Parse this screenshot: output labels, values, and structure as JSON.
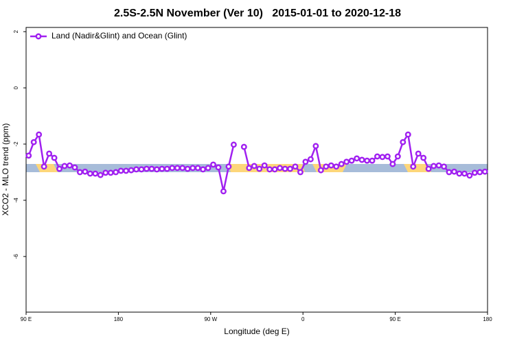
{
  "chart_data": {
    "type": "line",
    "title": "2.5S-2.5N November (Ver 10)   2015-01-01 to 2020-12-18",
    "xlabel": "Longitude (deg E)",
    "ylabel": "XCO2 - MLO trend (ppm)",
    "x": [
      92.5,
      97.5,
      102.5,
      107.5,
      112.5,
      117.5,
      122.5,
      127.5,
      132.5,
      137.5,
      142.5,
      147.5,
      152.5,
      157.5,
      162.5,
      167.5,
      172.5,
      177.5,
      182.5,
      187.5,
      192.5,
      197.5,
      202.5,
      207.5,
      212.5,
      217.5,
      222.5,
      227.5,
      232.5,
      237.5,
      242.5,
      247.5,
      252.5,
      257.5,
      262.5,
      267.5,
      272.5,
      277.5,
      282.5,
      287.5,
      292.5,
      297.5,
      302.5,
      307.5,
      312.5,
      317.5,
      322.5,
      327.5,
      332.5,
      337.5,
      342.5,
      347.5,
      352.5,
      357.5,
      362.5,
      367.5,
      372.5,
      377.5,
      382.5,
      387.5,
      392.5,
      397.5,
      402.5,
      407.5,
      412.5,
      417.5,
      422.5,
      427.5,
      432.5,
      437.5,
      442.5,
      447.5,
      452.5,
      457.5,
      462.5,
      467.5,
      472.5,
      477.5,
      482.5,
      487.5,
      492.5,
      497.5,
      502.5,
      507.5,
      512.5,
      517.5,
      522.5,
      527.5,
      532.5,
      537.5
    ],
    "series": [
      {
        "name": "Land (Nadir&Glint) and Ocean (Glint)",
        "color": "#a020f0",
        "values": [
          -2.41,
          -1.93,
          -1.66,
          -2.8,
          -2.34,
          -2.49,
          -2.88,
          -2.78,
          -2.76,
          -2.83,
          -3.0,
          -2.98,
          -3.05,
          -3.05,
          -3.1,
          -3.02,
          -3.02,
          -3.0,
          -2.95,
          -2.95,
          -2.93,
          -2.9,
          -2.9,
          -2.88,
          -2.88,
          -2.9,
          -2.88,
          -2.88,
          -2.85,
          -2.85,
          -2.85,
          -2.88,
          -2.85,
          -2.85,
          -2.9,
          -2.85,
          -2.73,
          -2.83,
          -3.68,
          -2.8,
          -2.02,
          null,
          -2.1,
          -2.85,
          -2.78,
          -2.88,
          -2.76,
          -2.9,
          -2.9,
          -2.85,
          -2.88,
          -2.88,
          -2.8,
          -3.0,
          -2.63,
          -2.54,
          -2.07,
          -2.93,
          -2.8,
          -2.76,
          -2.8,
          -2.71,
          -2.63,
          -2.59,
          -2.51,
          -2.56,
          -2.59,
          -2.59,
          -2.44,
          -2.46,
          -2.44,
          -2.71,
          -2.44,
          -1.93,
          -1.66,
          -2.8,
          -2.34,
          -2.49,
          -2.88,
          -2.78,
          -2.76,
          -2.8,
          -3.0,
          -2.98,
          -3.05,
          -3.05,
          -3.12,
          -3.02,
          -3.0,
          -2.98
        ]
      }
    ],
    "xlim": [
      90,
      540
    ],
    "xticks": [
      {
        "value": 90,
        "label": "90 E"
      },
      180,
      {
        "value": 270,
        "label": "90 W"
      },
      {
        "value": 360,
        "label": "0"
      },
      {
        "value": 450,
        "label": "90 E"
      },
      {
        "value": 540,
        "label": "180"
      }
    ],
    "ylim": [
      -7.98,
      2.15
    ],
    "yticks": [
      2,
      0,
      -2,
      -4,
      -6
    ],
    "legend": "top-left"
  }
}
